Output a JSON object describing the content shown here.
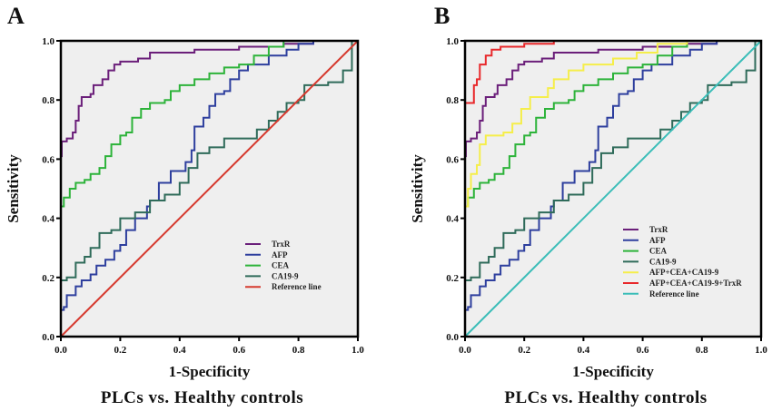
{
  "chart_data": [
    {
      "type": "line",
      "panel_label": "A",
      "title": "",
      "xlabel": "1-Specificity",
      "ylabel": "Sensitivity",
      "caption": "PLCs vs. Healthy controls",
      "xlim": [
        0,
        1
      ],
      "ylim": [
        0,
        1
      ],
      "xticks": [
        "0.0",
        "0.2",
        "0.4",
        "0.6",
        "0.8",
        "1.0"
      ],
      "yticks": [
        "0.0",
        "0.2",
        "0.4",
        "0.6",
        "0.8",
        "1.0"
      ],
      "grid": false,
      "background": "#efefef",
      "legend_position": "center-right",
      "series": [
        {
          "name": "TrxR",
          "color": "#6b1f7a",
          "step": true,
          "points": [
            [
              0,
              0
            ],
            [
              0,
              0.61
            ],
            [
              0.003,
              0.66
            ],
            [
              0.02,
              0.67
            ],
            [
              0.04,
              0.69
            ],
            [
              0.05,
              0.73
            ],
            [
              0.06,
              0.78
            ],
            [
              0.07,
              0.81
            ],
            [
              0.1,
              0.82
            ],
            [
              0.11,
              0.85
            ],
            [
              0.14,
              0.87
            ],
            [
              0.16,
              0.9
            ],
            [
              0.18,
              0.92
            ],
            [
              0.2,
              0.93
            ],
            [
              0.26,
              0.94
            ],
            [
              0.3,
              0.96
            ],
            [
              0.45,
              0.97
            ],
            [
              0.6,
              0.98
            ],
            [
              0.75,
              0.99
            ],
            [
              0.85,
              1.0
            ],
            [
              1,
              1
            ]
          ]
        },
        {
          "name": "AFP",
          "color": "#2e3f9e",
          "step": true,
          "points": [
            [
              0,
              0
            ],
            [
              0,
              0.09
            ],
            [
              0.01,
              0.1
            ],
            [
              0.02,
              0.14
            ],
            [
              0.05,
              0.17
            ],
            [
              0.07,
              0.19
            ],
            [
              0.1,
              0.21
            ],
            [
              0.12,
              0.24
            ],
            [
              0.15,
              0.26
            ],
            [
              0.18,
              0.29
            ],
            [
              0.2,
              0.31
            ],
            [
              0.22,
              0.36
            ],
            [
              0.25,
              0.4
            ],
            [
              0.29,
              0.44
            ],
            [
              0.3,
              0.46
            ],
            [
              0.33,
              0.52
            ],
            [
              0.37,
              0.56
            ],
            [
              0.42,
              0.59
            ],
            [
              0.44,
              0.63
            ],
            [
              0.45,
              0.71
            ],
            [
              0.48,
              0.74
            ],
            [
              0.5,
              0.78
            ],
            [
              0.52,
              0.82
            ],
            [
              0.55,
              0.83
            ],
            [
              0.57,
              0.87
            ],
            [
              0.6,
              0.9
            ],
            [
              0.63,
              0.92
            ],
            [
              0.7,
              0.95
            ],
            [
              0.76,
              0.97
            ],
            [
              0.8,
              0.99
            ],
            [
              0.85,
              1.0
            ],
            [
              1,
              1
            ]
          ]
        },
        {
          "name": "CEA",
          "color": "#2db33a",
          "step": true,
          "points": [
            [
              0,
              0
            ],
            [
              0,
              0.44
            ],
            [
              0.01,
              0.47
            ],
            [
              0.03,
              0.5
            ],
            [
              0.05,
              0.52
            ],
            [
              0.08,
              0.53
            ],
            [
              0.1,
              0.55
            ],
            [
              0.13,
              0.57
            ],
            [
              0.15,
              0.61
            ],
            [
              0.17,
              0.65
            ],
            [
              0.2,
              0.68
            ],
            [
              0.22,
              0.69
            ],
            [
              0.24,
              0.74
            ],
            [
              0.27,
              0.77
            ],
            [
              0.3,
              0.79
            ],
            [
              0.35,
              0.8
            ],
            [
              0.37,
              0.83
            ],
            [
              0.4,
              0.85
            ],
            [
              0.45,
              0.87
            ],
            [
              0.5,
              0.89
            ],
            [
              0.55,
              0.91
            ],
            [
              0.6,
              0.92
            ],
            [
              0.65,
              0.95
            ],
            [
              0.7,
              0.98
            ],
            [
              0.75,
              1.0
            ],
            [
              1,
              1
            ]
          ]
        },
        {
          "name": "CA19-9",
          "color": "#2f6b5a",
          "step": true,
          "points": [
            [
              0,
              0
            ],
            [
              0,
              0.19
            ],
            [
              0.02,
              0.2
            ],
            [
              0.05,
              0.25
            ],
            [
              0.08,
              0.27
            ],
            [
              0.1,
              0.3
            ],
            [
              0.13,
              0.35
            ],
            [
              0.17,
              0.36
            ],
            [
              0.2,
              0.4
            ],
            [
              0.25,
              0.42
            ],
            [
              0.3,
              0.46
            ],
            [
              0.35,
              0.48
            ],
            [
              0.4,
              0.52
            ],
            [
              0.43,
              0.57
            ],
            [
              0.46,
              0.62
            ],
            [
              0.5,
              0.64
            ],
            [
              0.55,
              0.67
            ],
            [
              0.62,
              0.67
            ],
            [
              0.66,
              0.7
            ],
            [
              0.7,
              0.73
            ],
            [
              0.73,
              0.76
            ],
            [
              0.76,
              0.79
            ],
            [
              0.8,
              0.8
            ],
            [
              0.82,
              0.85
            ],
            [
              0.9,
              0.86
            ],
            [
              0.95,
              0.9
            ],
            [
              0.98,
              0.93
            ],
            [
              0.98,
              1.0
            ],
            [
              1,
              1
            ]
          ]
        },
        {
          "name": "Reference line",
          "color": "#d63a2f",
          "step": false,
          "points": [
            [
              0,
              0
            ],
            [
              1,
              1
            ]
          ]
        }
      ]
    },
    {
      "type": "line",
      "panel_label": "B",
      "title": "",
      "xlabel": "1-Specificity",
      "ylabel": "Sensitivity",
      "caption": "PLCs vs. Healthy controls",
      "xlim": [
        0,
        1
      ],
      "ylim": [
        0,
        1
      ],
      "xticks": [
        "0.0",
        "0.2",
        "0.4",
        "0.6",
        "0.8",
        "1.0"
      ],
      "yticks": [
        "0.0",
        "0.2",
        "0.4",
        "0.6",
        "0.8",
        "1.0"
      ],
      "grid": false,
      "background": "#efefef",
      "legend_position": "center-right",
      "series": [
        {
          "name": "TrxR",
          "color": "#6b1f7a",
          "step": true,
          "points": [
            [
              0,
              0
            ],
            [
              0,
              0.61
            ],
            [
              0.003,
              0.66
            ],
            [
              0.02,
              0.67
            ],
            [
              0.04,
              0.69
            ],
            [
              0.05,
              0.73
            ],
            [
              0.06,
              0.78
            ],
            [
              0.07,
              0.81
            ],
            [
              0.1,
              0.82
            ],
            [
              0.11,
              0.85
            ],
            [
              0.14,
              0.87
            ],
            [
              0.16,
              0.9
            ],
            [
              0.18,
              0.92
            ],
            [
              0.2,
              0.93
            ],
            [
              0.26,
              0.94
            ],
            [
              0.3,
              0.96
            ],
            [
              0.45,
              0.97
            ],
            [
              0.6,
              0.98
            ],
            [
              0.75,
              0.99
            ],
            [
              0.85,
              1.0
            ],
            [
              1,
              1
            ]
          ]
        },
        {
          "name": "AFP",
          "color": "#2e3f9e",
          "step": true,
          "points": [
            [
              0,
              0
            ],
            [
              0,
              0.09
            ],
            [
              0.01,
              0.1
            ],
            [
              0.02,
              0.14
            ],
            [
              0.05,
              0.17
            ],
            [
              0.07,
              0.19
            ],
            [
              0.1,
              0.21
            ],
            [
              0.12,
              0.24
            ],
            [
              0.15,
              0.26
            ],
            [
              0.18,
              0.29
            ],
            [
              0.2,
              0.31
            ],
            [
              0.22,
              0.36
            ],
            [
              0.25,
              0.4
            ],
            [
              0.29,
              0.44
            ],
            [
              0.3,
              0.46
            ],
            [
              0.33,
              0.52
            ],
            [
              0.37,
              0.56
            ],
            [
              0.42,
              0.59
            ],
            [
              0.44,
              0.63
            ],
            [
              0.45,
              0.71
            ],
            [
              0.48,
              0.74
            ],
            [
              0.5,
              0.78
            ],
            [
              0.52,
              0.82
            ],
            [
              0.55,
              0.83
            ],
            [
              0.57,
              0.87
            ],
            [
              0.6,
              0.9
            ],
            [
              0.63,
              0.92
            ],
            [
              0.7,
              0.95
            ],
            [
              0.76,
              0.97
            ],
            [
              0.8,
              0.99
            ],
            [
              0.85,
              1.0
            ],
            [
              1,
              1
            ]
          ]
        },
        {
          "name": "CEA",
          "color": "#2db33a",
          "step": true,
          "points": [
            [
              0,
              0
            ],
            [
              0,
              0.44
            ],
            [
              0.01,
              0.47
            ],
            [
              0.03,
              0.5
            ],
            [
              0.05,
              0.52
            ],
            [
              0.08,
              0.53
            ],
            [
              0.1,
              0.55
            ],
            [
              0.13,
              0.57
            ],
            [
              0.15,
              0.61
            ],
            [
              0.17,
              0.65
            ],
            [
              0.2,
              0.68
            ],
            [
              0.22,
              0.69
            ],
            [
              0.24,
              0.74
            ],
            [
              0.27,
              0.77
            ],
            [
              0.3,
              0.79
            ],
            [
              0.35,
              0.8
            ],
            [
              0.37,
              0.83
            ],
            [
              0.4,
              0.85
            ],
            [
              0.45,
              0.87
            ],
            [
              0.5,
              0.89
            ],
            [
              0.55,
              0.91
            ],
            [
              0.6,
              0.92
            ],
            [
              0.65,
              0.95
            ],
            [
              0.7,
              0.98
            ],
            [
              0.75,
              1.0
            ],
            [
              1,
              1
            ]
          ]
        },
        {
          "name": "CA19-9",
          "color": "#2f6b5a",
          "step": true,
          "points": [
            [
              0,
              0
            ],
            [
              0,
              0.19
            ],
            [
              0.02,
              0.2
            ],
            [
              0.05,
              0.25
            ],
            [
              0.08,
              0.27
            ],
            [
              0.1,
              0.3
            ],
            [
              0.13,
              0.35
            ],
            [
              0.17,
              0.36
            ],
            [
              0.2,
              0.4
            ],
            [
              0.25,
              0.42
            ],
            [
              0.3,
              0.46
            ],
            [
              0.35,
              0.48
            ],
            [
              0.4,
              0.52
            ],
            [
              0.43,
              0.57
            ],
            [
              0.46,
              0.62
            ],
            [
              0.5,
              0.64
            ],
            [
              0.55,
              0.67
            ],
            [
              0.62,
              0.67
            ],
            [
              0.66,
              0.7
            ],
            [
              0.7,
              0.73
            ],
            [
              0.73,
              0.76
            ],
            [
              0.76,
              0.79
            ],
            [
              0.8,
              0.8
            ],
            [
              0.82,
              0.85
            ],
            [
              0.9,
              0.86
            ],
            [
              0.95,
              0.9
            ],
            [
              0.98,
              0.93
            ],
            [
              0.98,
              1.0
            ],
            [
              1,
              1
            ]
          ]
        },
        {
          "name": "AFP+CEA+CA19-9",
          "color": "#f5ee4a",
          "step": true,
          "points": [
            [
              0,
              0
            ],
            [
              0,
              0.44
            ],
            [
              0.01,
              0.5
            ],
            [
              0.02,
              0.55
            ],
            [
              0.04,
              0.58
            ],
            [
              0.05,
              0.65
            ],
            [
              0.07,
              0.68
            ],
            [
              0.13,
              0.69
            ],
            [
              0.16,
              0.72
            ],
            [
              0.19,
              0.77
            ],
            [
              0.22,
              0.81
            ],
            [
              0.28,
              0.84
            ],
            [
              0.3,
              0.87
            ],
            [
              0.35,
              0.9
            ],
            [
              0.4,
              0.92
            ],
            [
              0.5,
              0.94
            ],
            [
              0.58,
              0.96
            ],
            [
              0.65,
              0.99
            ],
            [
              0.75,
              1.0
            ],
            [
              1,
              1
            ]
          ]
        },
        {
          "name": "AFP+CEA+CA19-9+TrxR",
          "color": "#e8282b",
          "step": true,
          "points": [
            [
              0,
              0
            ],
            [
              0,
              0.79
            ],
            [
              0.02,
              0.79
            ],
            [
              0.03,
              0.85
            ],
            [
              0.04,
              0.87
            ],
            [
              0.05,
              0.92
            ],
            [
              0.07,
              0.95
            ],
            [
              0.09,
              0.97
            ],
            [
              0.12,
              0.98
            ],
            [
              0.2,
              0.99
            ],
            [
              0.3,
              1.0
            ],
            [
              1,
              1
            ]
          ]
        },
        {
          "name": "Reference line",
          "color": "#3bbdb8",
          "step": false,
          "points": [
            [
              0,
              0
            ],
            [
              1,
              1
            ]
          ]
        }
      ]
    }
  ]
}
